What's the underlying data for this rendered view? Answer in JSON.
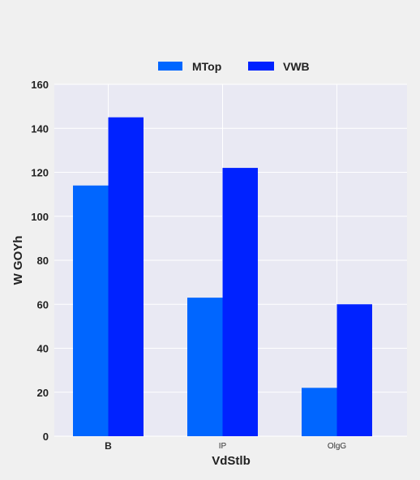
{
  "chart_data": {
    "type": "bar",
    "title": "",
    "xlabel": "VdStlb",
    "ylabel": "W GOYh",
    "categories": [
      "B",
      "IP",
      "OlgG"
    ],
    "series": [
      {
        "name": "MTop",
        "values": [
          114,
          63,
          22
        ],
        "color": "#0066ff"
      },
      {
        "name": "VWB",
        "values": [
          145,
          122,
          60
        ],
        "color": "#0022ff"
      }
    ],
    "ylim": [
      0,
      160
    ],
    "yticks": [
      0,
      20,
      40,
      60,
      80,
      100,
      120,
      140,
      160
    ],
    "grid": true,
    "legend_position": "top-center",
    "colors": {
      "plot_background": "#e9e9f3",
      "page_background": "#f0f0f0",
      "grid": "#ffffff"
    }
  }
}
